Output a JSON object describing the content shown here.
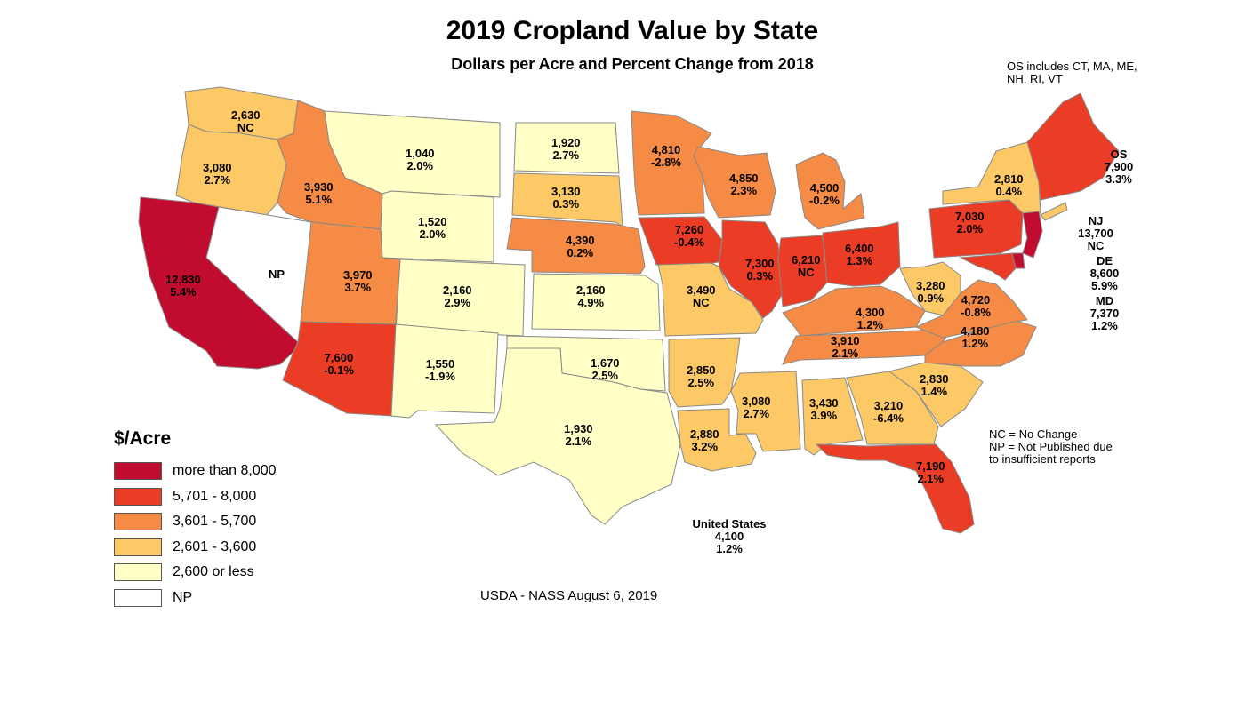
{
  "title": "2019 Cropland Value by State",
  "subtitle": "Dollars per Acre and Percent Change from 2018",
  "os_note": "OS includes CT, MA, ME, NH, RI, VT",
  "colors": {
    "more_than_8000": "#c10c2f",
    "c5701_8000": "#eb3d25",
    "c3601_5700": "#f58b44",
    "c2601_3600": "#fdc966",
    "c2600_or_less": "#ffffc6",
    "np": "#ffffff",
    "border": "#888888"
  },
  "legend": {
    "title": "$/Acre",
    "items": [
      {
        "label": "more than 8,000",
        "color": "#c10c2f"
      },
      {
        "label": "5,701 - 8,000",
        "color": "#eb3d25"
      },
      {
        "label": "3,601 - 5,700",
        "color": "#f58b44"
      },
      {
        "label": "2,601 - 3,600",
        "color": "#fdc966"
      },
      {
        "label": "2,600 or less",
        "color": "#ffffc6"
      },
      {
        "label": "NP",
        "color": "#ffffff"
      }
    ]
  },
  "notes": {
    "nc": "NC = No Change",
    "np_line1": "NP = Not Published due",
    "np_line2": "to insufficient reports"
  },
  "us_total": {
    "name": "United States",
    "value": "4,100",
    "change": "1.2%"
  },
  "source": "USDA - NASS August 6, 2019",
  "states": {
    "WA": {
      "value": "2,630",
      "change": "NC"
    },
    "OR": {
      "value": "3,080",
      "change": "2.7%"
    },
    "CA": {
      "value": "12,830",
      "change": "5.4%"
    },
    "NV": {
      "value": "NP",
      "change": ""
    },
    "ID": {
      "value": "3,930",
      "change": "5.1%"
    },
    "MT": {
      "value": "1,040",
      "change": "2.0%"
    },
    "WY": {
      "value": "1,520",
      "change": "2.0%"
    },
    "UT": {
      "value": "3,970",
      "change": "3.7%"
    },
    "CO": {
      "value": "2,160",
      "change": "2.9%"
    },
    "AZ": {
      "value": "7,600",
      "change": "-0.1%"
    },
    "NM": {
      "value": "1,550",
      "change": "-1.9%"
    },
    "ND": {
      "value": "1,920",
      "change": "2.7%"
    },
    "SD": {
      "value": "3,130",
      "change": "0.3%"
    },
    "NE": {
      "value": "4,390",
      "change": "0.2%"
    },
    "KS": {
      "value": "2,160",
      "change": "4.9%"
    },
    "OK": {
      "value": "1,670",
      "change": "2.5%"
    },
    "TX": {
      "value": "1,930",
      "change": "2.1%"
    },
    "MN": {
      "value": "4,810",
      "change": "-2.8%"
    },
    "IA": {
      "value": "7,260",
      "change": "-0.4%"
    },
    "MO": {
      "value": "3,490",
      "change": "NC"
    },
    "AR": {
      "value": "2,850",
      "change": "2.5%"
    },
    "LA": {
      "value": "2,880",
      "change": "3.2%"
    },
    "WI": {
      "value": "4,850",
      "change": "2.3%"
    },
    "IL": {
      "value": "7,300",
      "change": "0.3%"
    },
    "MI": {
      "value": "4,500",
      "change": "-0.2%"
    },
    "IN": {
      "value": "6,210",
      "change": "NC"
    },
    "OH": {
      "value": "6,400",
      "change": "1.3%"
    },
    "KY": {
      "value": "4,300",
      "change": "1.2%"
    },
    "TN": {
      "value": "3,910",
      "change": "2.1%"
    },
    "MS": {
      "value": "3,080",
      "change": "2.7%"
    },
    "AL": {
      "value": "3,430",
      "change": "3.9%"
    },
    "GA": {
      "value": "3,210",
      "change": "-6.4%"
    },
    "FL": {
      "value": "7,190",
      "change": "2.1%"
    },
    "SC": {
      "value": "2,830",
      "change": "1.4%"
    },
    "NC": {
      "value": "4,180",
      "change": "1.2%"
    },
    "VA": {
      "value": "4,720",
      "change": "-0.8%"
    },
    "WV": {
      "value": "3,280",
      "change": "0.9%"
    },
    "PA": {
      "value": "7,030",
      "change": "2.0%"
    },
    "NY": {
      "value": "2,810",
      "change": "0.4%"
    },
    "OS": {
      "name": "OS",
      "value": "7,900",
      "change": "3.3%"
    },
    "NJ": {
      "name": "NJ",
      "value": "13,700",
      "change": "NC"
    },
    "DE": {
      "name": "DE",
      "value": "8,600",
      "change": "5.9%"
    },
    "MD": {
      "name": "MD",
      "value": "7,370",
      "change": "1.2%"
    }
  }
}
